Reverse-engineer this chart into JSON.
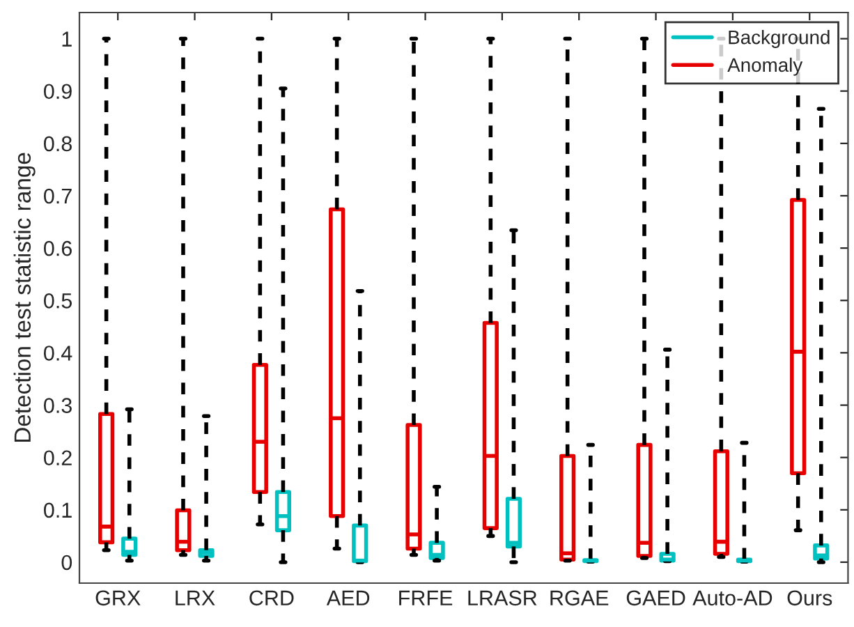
{
  "chart_data": {
    "type": "box",
    "ylabel": "Detection test statistic range",
    "categories": [
      "GRX",
      "LRX",
      "CRD",
      "AED",
      "FRFE",
      "LRASR",
      "RGAE",
      "GAED",
      "Auto-AD",
      "Ours"
    ],
    "ylim": [
      -0.04,
      1.05
    ],
    "yticks": [
      0,
      0.1,
      0.2,
      0.3,
      0.4,
      0.5,
      0.6,
      0.7,
      0.8,
      0.9,
      1
    ],
    "legend": "top right",
    "grid": false,
    "line_style": "dashed",
    "series": [
      {
        "name": "Anomaly",
        "color": "#e60000",
        "boxes": [
          {
            "low": 0.023,
            "q1": 0.038,
            "median": 0.068,
            "q3": 0.283,
            "high": 1
          },
          {
            "low": 0.014,
            "q1": 0.023,
            "median": 0.039,
            "q3": 0.099,
            "high": 1
          },
          {
            "low": 0.072,
            "q1": 0.134,
            "median": 0.23,
            "q3": 0.377,
            "high": 1
          },
          {
            "low": 0.026,
            "q1": 0.088,
            "median": 0.275,
            "q3": 0.674,
            "high": 1
          },
          {
            "low": 0.014,
            "q1": 0.026,
            "median": 0.053,
            "q3": 0.262,
            "high": 1
          },
          {
            "low": 0.05,
            "q1": 0.065,
            "median": 0.203,
            "q3": 0.457,
            "high": 1
          },
          {
            "low": 0.003,
            "q1": 0.005,
            "median": 0.017,
            "q3": 0.203,
            "high": 1
          },
          {
            "low": 0.008,
            "q1": 0.012,
            "median": 0.037,
            "q3": 0.224,
            "high": 1
          },
          {
            "low": 0.01,
            "q1": 0.016,
            "median": 0.039,
            "q3": 0.212,
            "high": 1
          },
          {
            "low": 0.061,
            "q1": 0.17,
            "median": 0.402,
            "q3": 0.692,
            "high": 1
          }
        ]
      },
      {
        "name": "Background",
        "color": "#00c0c0",
        "boxes": [
          {
            "low": 0.003,
            "q1": 0.014,
            "median": 0.02,
            "q3": 0.045,
            "high": 0.292
          },
          {
            "low": 0.003,
            "q1": 0.012,
            "median": 0.019,
            "q3": 0.023,
            "high": 0.279
          },
          {
            "low": 0.0,
            "q1": 0.061,
            "median": 0.088,
            "q3": 0.134,
            "high": 0.905
          },
          {
            "low": 0.0,
            "q1": 0.002,
            "median": 0.003,
            "q3": 0.07,
            "high": 0.518
          },
          {
            "low": 0.003,
            "q1": 0.008,
            "median": 0.014,
            "q3": 0.037,
            "high": 0.144
          },
          {
            "low": 0.0,
            "q1": 0.03,
            "median": 0.037,
            "q3": 0.121,
            "high": 0.634
          },
          {
            "low": 0.001,
            "q1": 0.002,
            "median": 0.003,
            "q3": 0.004,
            "high": 0.224
          },
          {
            "low": 0.002,
            "q1": 0.003,
            "median": 0.005,
            "q3": 0.016,
            "high": 0.406
          },
          {
            "low": 0.001,
            "q1": 0.002,
            "median": 0.003,
            "q3": 0.005,
            "high": 0.228
          },
          {
            "low": 0.0,
            "q1": 0.007,
            "median": 0.013,
            "q3": 0.032,
            "high": 0.866
          }
        ]
      }
    ]
  }
}
